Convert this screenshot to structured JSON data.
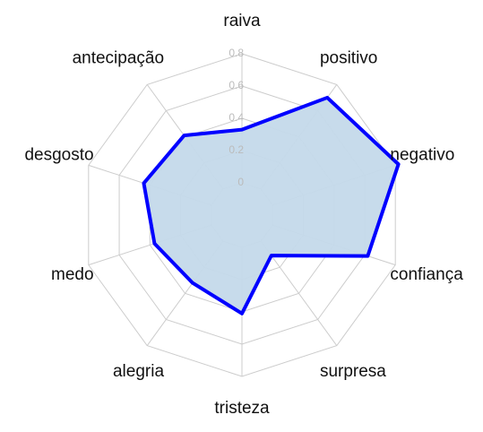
{
  "chart_data": {
    "type": "radar",
    "categories": [
      "raiva",
      "positivo",
      "negativo",
      "confiança",
      "surpresa",
      "tristeza",
      "alegria",
      "medo",
      "desgosto",
      "antecipação"
    ],
    "values": [
      0.33,
      0.7,
      0.82,
      0.62,
      0.11,
      0.41,
      0.32,
      0.37,
      0.44,
      0.41
    ],
    "color": "#0000ff",
    "fill": "#c4d9ea",
    "ylim": [
      0,
      0.8
    ],
    "yticks": [
      0,
      0.2,
      0.4,
      0.6,
      0.8
    ],
    "grid": true
  }
}
